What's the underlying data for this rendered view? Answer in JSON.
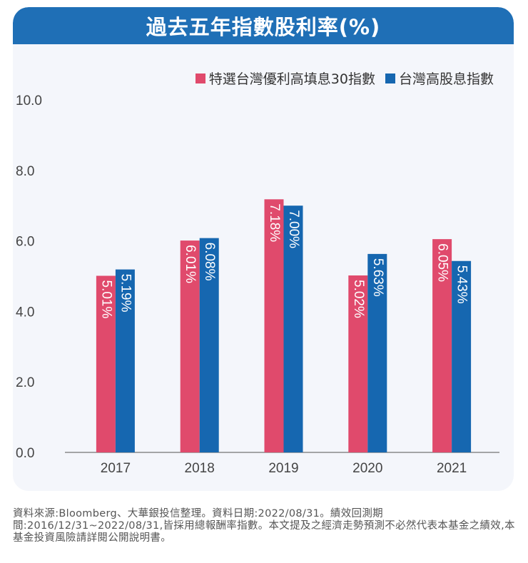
{
  "header": {
    "title": "過去五年指數股利率(%)"
  },
  "footnote": "資料來源:Bloomberg、大華銀投信整理。資料日期:2022/08/31。績效回測期間:2016/12/31~2022/08/31,皆採用總報酬率指數。本文提及之經濟走勢預測不必然代表本基金之績效,本基金投資風險請詳閱公開說明書。",
  "colors": {
    "header": "#1f6fb6",
    "series1": "#e04a6c",
    "series2": "#1667b0",
    "card": "#f4f6fb"
  },
  "chart_data": {
    "type": "bar",
    "title": "過去五年指數股利率(%)",
    "categories": [
      "2017",
      "2018",
      "2019",
      "2020",
      "2021"
    ],
    "series": [
      {
        "name": "特選台灣優利高填息30指數",
        "values": [
          5.01,
          6.01,
          7.18,
          5.02,
          6.05
        ],
        "labels": [
          "5.01%",
          "6.01%",
          "7.18%",
          "5.02%",
          "6.05%"
        ]
      },
      {
        "name": "台灣高股息指數",
        "values": [
          5.19,
          6.08,
          7.0,
          5.63,
          5.43
        ],
        "labels": [
          "5.19%",
          "6.08%",
          "7.00%",
          "5.63%",
          "5.43%"
        ]
      }
    ],
    "yticks": [
      "0.0",
      "2.0",
      "4.0",
      "6.0",
      "8.0",
      "10.0"
    ],
    "ylim": [
      0,
      10
    ],
    "xlabel": "",
    "ylabel": "",
    "grid": false,
    "legend_position": "top-right"
  }
}
